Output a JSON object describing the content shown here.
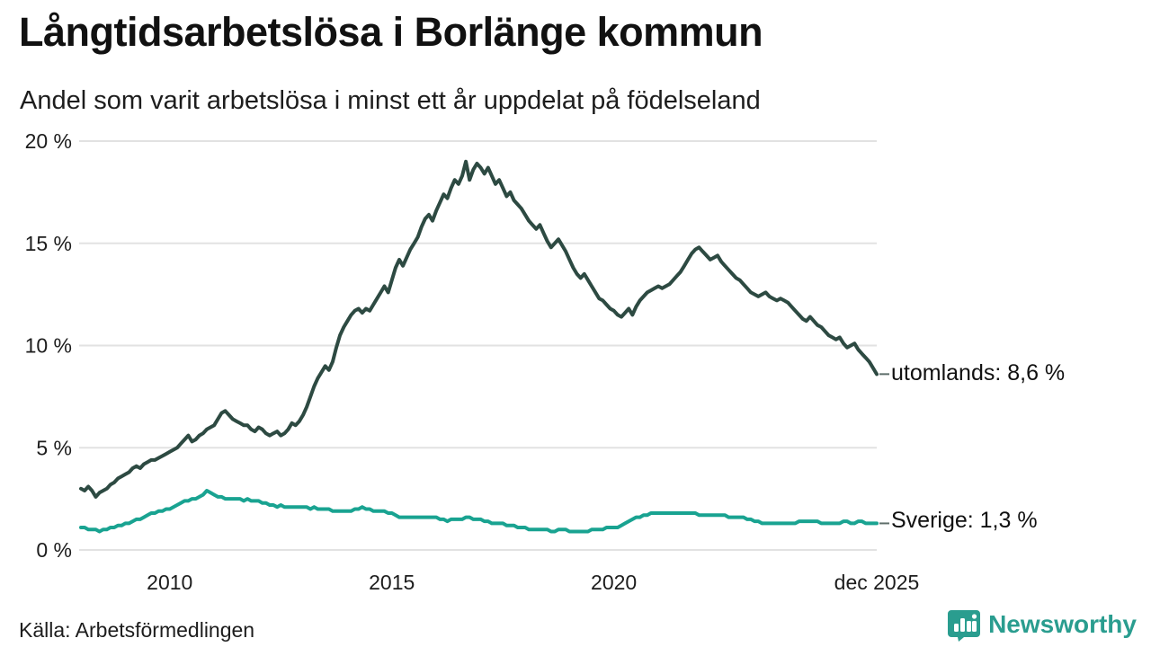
{
  "header": {
    "title": "Långtidsarbetslösa i Borlänge kommun",
    "subtitle": "Andel som varit arbetslösa i minst ett år uppdelat på födelseland"
  },
  "footer": {
    "source": "Källa: Arbetsförmedlingen",
    "brand_name": "Newsworthy",
    "brand_color": "#2a9d8f"
  },
  "colors": {
    "grid": "#e2e2e2",
    "axis_text": "#1d1d1d",
    "label_dash": "#5f6f6b"
  },
  "chart_data": {
    "type": "line",
    "title": "Långtidsarbetslösa i Borlänge kommun",
    "subtitle": "Andel som varit arbetslösa i minst ett år uppdelat på födelseland",
    "x_unit": "month",
    "x_start_year": 2008,
    "x_end_label_year": 2025.92,
    "ylim": [
      0,
      20
    ],
    "grid": "horizontal",
    "yticks": [
      {
        "value": 0,
        "label": "0 %"
      },
      {
        "value": 5,
        "label": "5 %"
      },
      {
        "value": 10,
        "label": "10 %"
      },
      {
        "value": 15,
        "label": "15 %"
      },
      {
        "value": 20,
        "label": "20 %"
      }
    ],
    "xticks": [
      {
        "year": 2010,
        "label": "2010"
      },
      {
        "year": 2015,
        "label": "2015"
      },
      {
        "year": 2020,
        "label": "2020"
      },
      {
        "year": 2025.92,
        "label": "dec 2025"
      }
    ],
    "series": [
      {
        "name": "utomlands",
        "end_label": "utomlands: 8,6 %",
        "end_value": 8.6,
        "color": "#2d4a42",
        "values": [
          3.0,
          2.9,
          3.1,
          2.9,
          2.6,
          2.8,
          2.9,
          3.0,
          3.2,
          3.3,
          3.5,
          3.6,
          3.7,
          3.8,
          4.0,
          4.1,
          4.0,
          4.2,
          4.3,
          4.4,
          4.4,
          4.5,
          4.6,
          4.7,
          4.8,
          4.9,
          5.0,
          5.2,
          5.4,
          5.6,
          5.3,
          5.4,
          5.6,
          5.7,
          5.9,
          6.0,
          6.1,
          6.4,
          6.7,
          6.8,
          6.6,
          6.4,
          6.3,
          6.2,
          6.1,
          6.1,
          5.9,
          5.8,
          6.0,
          5.9,
          5.7,
          5.6,
          5.7,
          5.8,
          5.6,
          5.7,
          5.9,
          6.2,
          6.1,
          6.3,
          6.6,
          7.0,
          7.5,
          8.0,
          8.4,
          8.7,
          9.0,
          8.8,
          9.2,
          9.9,
          10.5,
          10.9,
          11.2,
          11.5,
          11.7,
          11.8,
          11.6,
          11.8,
          11.7,
          12.0,
          12.3,
          12.6,
          12.9,
          12.6,
          13.2,
          13.8,
          14.2,
          13.9,
          14.3,
          14.7,
          15.0,
          15.3,
          15.8,
          16.2,
          16.4,
          16.1,
          16.6,
          17.0,
          17.4,
          17.2,
          17.7,
          18.1,
          17.9,
          18.3,
          19.0,
          18.1,
          18.6,
          18.9,
          18.7,
          18.4,
          18.7,
          18.3,
          17.9,
          18.1,
          17.7,
          17.3,
          17.5,
          17.1,
          16.9,
          16.7,
          16.4,
          16.1,
          15.9,
          15.7,
          15.9,
          15.5,
          15.1,
          14.8,
          15.0,
          15.2,
          14.9,
          14.6,
          14.2,
          13.8,
          13.5,
          13.3,
          13.5,
          13.2,
          12.9,
          12.6,
          12.3,
          12.2,
          12.0,
          11.8,
          11.7,
          11.5,
          11.4,
          11.6,
          11.8,
          11.5,
          11.9,
          12.2,
          12.4,
          12.6,
          12.7,
          12.8,
          12.9,
          12.8,
          12.9,
          13.0,
          13.2,
          13.4,
          13.6,
          13.9,
          14.2,
          14.5,
          14.7,
          14.8,
          14.6,
          14.4,
          14.2,
          14.3,
          14.4,
          14.1,
          13.9,
          13.7,
          13.5,
          13.3,
          13.2,
          13.0,
          12.8,
          12.6,
          12.5,
          12.4,
          12.5,
          12.6,
          12.4,
          12.3,
          12.2,
          12.3,
          12.2,
          12.1,
          11.9,
          11.7,
          11.5,
          11.3,
          11.2,
          11.4,
          11.2,
          11.0,
          10.9,
          10.7,
          10.5,
          10.4,
          10.3,
          10.4,
          10.1,
          9.9,
          10.0,
          10.1,
          9.8,
          9.6,
          9.4,
          9.2,
          8.9,
          8.6
        ]
      },
      {
        "name": "Sverige",
        "end_label": "Sverige: 1,3 %",
        "end_value": 1.3,
        "color": "#19a391",
        "values": [
          1.1,
          1.1,
          1.0,
          1.0,
          1.0,
          0.9,
          1.0,
          1.0,
          1.1,
          1.1,
          1.2,
          1.2,
          1.3,
          1.3,
          1.4,
          1.5,
          1.5,
          1.6,
          1.7,
          1.8,
          1.8,
          1.9,
          1.9,
          2.0,
          2.0,
          2.1,
          2.2,
          2.3,
          2.4,
          2.4,
          2.5,
          2.5,
          2.6,
          2.7,
          2.9,
          2.8,
          2.7,
          2.6,
          2.6,
          2.5,
          2.5,
          2.5,
          2.5,
          2.5,
          2.4,
          2.5,
          2.4,
          2.4,
          2.4,
          2.3,
          2.3,
          2.2,
          2.2,
          2.1,
          2.2,
          2.1,
          2.1,
          2.1,
          2.1,
          2.1,
          2.1,
          2.1,
          2.0,
          2.1,
          2.0,
          2.0,
          2.0,
          2.0,
          1.9,
          1.9,
          1.9,
          1.9,
          1.9,
          1.9,
          2.0,
          2.0,
          2.1,
          2.0,
          2.0,
          1.9,
          1.9,
          1.9,
          1.9,
          1.8,
          1.8,
          1.7,
          1.6,
          1.6,
          1.6,
          1.6,
          1.6,
          1.6,
          1.6,
          1.6,
          1.6,
          1.6,
          1.6,
          1.5,
          1.5,
          1.4,
          1.5,
          1.5,
          1.5,
          1.5,
          1.6,
          1.6,
          1.5,
          1.5,
          1.5,
          1.4,
          1.4,
          1.3,
          1.3,
          1.3,
          1.3,
          1.2,
          1.2,
          1.2,
          1.1,
          1.1,
          1.1,
          1.0,
          1.0,
          1.0,
          1.0,
          1.0,
          1.0,
          0.9,
          0.9,
          1.0,
          1.0,
          1.0,
          0.9,
          0.9,
          0.9,
          0.9,
          0.9,
          0.9,
          1.0,
          1.0,
          1.0,
          1.0,
          1.1,
          1.1,
          1.1,
          1.1,
          1.2,
          1.3,
          1.4,
          1.5,
          1.6,
          1.6,
          1.7,
          1.7,
          1.8,
          1.8,
          1.8,
          1.8,
          1.8,
          1.8,
          1.8,
          1.8,
          1.8,
          1.8,
          1.8,
          1.8,
          1.8,
          1.7,
          1.7,
          1.7,
          1.7,
          1.7,
          1.7,
          1.7,
          1.7,
          1.6,
          1.6,
          1.6,
          1.6,
          1.6,
          1.5,
          1.5,
          1.4,
          1.4,
          1.3,
          1.3,
          1.3,
          1.3,
          1.3,
          1.3,
          1.3,
          1.3,
          1.3,
          1.3,
          1.4,
          1.4,
          1.4,
          1.4,
          1.4,
          1.4,
          1.3,
          1.3,
          1.3,
          1.3,
          1.3,
          1.3,
          1.4,
          1.4,
          1.3,
          1.3,
          1.4,
          1.4,
          1.3,
          1.3,
          1.3,
          1.3
        ]
      }
    ]
  }
}
